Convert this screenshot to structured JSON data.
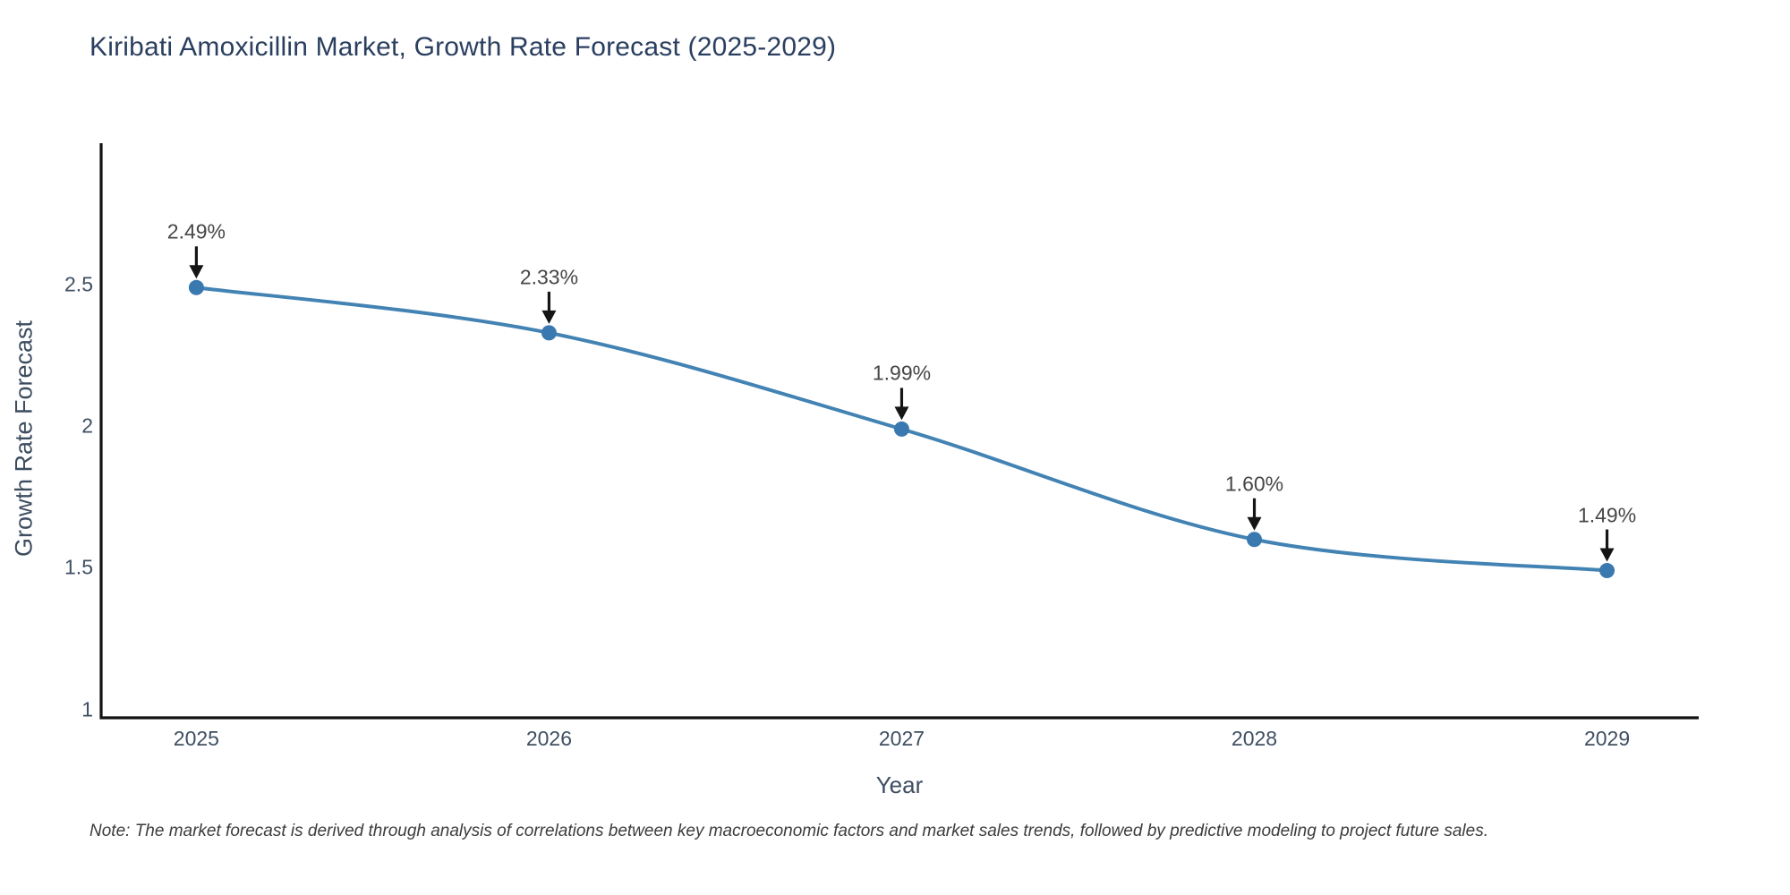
{
  "title": "Kiribati Amoxicillin Market, Growth Rate Forecast (2025-2029)",
  "note": "Note: The market forecast is derived through analysis of correlations between key macroeconomic factors and market sales trends, followed by predictive modeling to project future sales.",
  "chart_data": {
    "type": "line",
    "title": "Kiribati Amoxicillin Market, Growth Rate Forecast (2025-2029)",
    "xlabel": "Year",
    "ylabel": "Growth Rate Forecast",
    "x": [
      2025,
      2026,
      2027,
      2028,
      2029
    ],
    "values": [
      2.49,
      2.33,
      1.99,
      1.6,
      1.49
    ],
    "point_labels": [
      "2.49%",
      "2.33%",
      "1.99%",
      "1.60%",
      "1.49%"
    ],
    "x_tick_labels": [
      "2025",
      "2026",
      "2027",
      "2028",
      "2029"
    ],
    "x_tick_values": [
      2025,
      2026,
      2027,
      2028,
      2029
    ],
    "y_tick_labels": [
      "2.5",
      "2",
      "1.5",
      "1"
    ],
    "y_tick_values": [
      2.5,
      2.0,
      1.5,
      1.0
    ],
    "xlim": [
      2024.73,
      2029.26
    ],
    "ylim": [
      0.97,
      3.0
    ],
    "grid": false,
    "legend": false,
    "smooth": true,
    "line_color": "#4383b4",
    "marker_color": "#3a78b0",
    "arrow_color": "#151515",
    "axis_color": "#111111",
    "annotation": "arrows-down-to-points"
  }
}
